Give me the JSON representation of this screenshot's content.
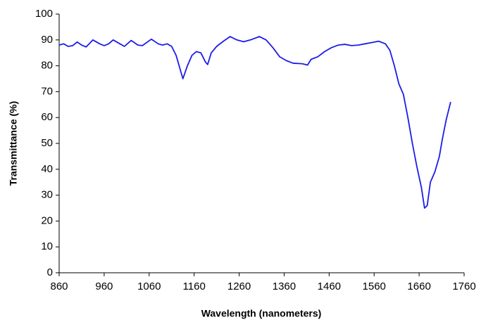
{
  "chart_data": {
    "type": "line",
    "xlabel": "Wavelength (nanometers)",
    "ylabel": "Transmittance (%)",
    "x": [
      860,
      870,
      880,
      890,
      900,
      910,
      920,
      935,
      950,
      960,
      970,
      980,
      995,
      1005,
      1020,
      1035,
      1045,
      1065,
      1080,
      1090,
      1100,
      1110,
      1120,
      1130,
      1135,
      1145,
      1155,
      1165,
      1175,
      1185,
      1190,
      1198,
      1210,
      1225,
      1240,
      1255,
      1270,
      1285,
      1305,
      1320,
      1335,
      1350,
      1365,
      1380,
      1400,
      1412,
      1420,
      1435,
      1450,
      1465,
      1480,
      1495,
      1510,
      1525,
      1540,
      1555,
      1570,
      1585,
      1595,
      1605,
      1615,
      1625,
      1635,
      1645,
      1655,
      1665,
      1672,
      1678,
      1685,
      1695,
      1705,
      1712,
      1720,
      1730
    ],
    "series": [
      {
        "color": "#1c1ce8",
        "values": [
          88,
          88.5,
          87.5,
          87.8,
          89.2,
          88,
          87.3,
          90,
          88.5,
          87.8,
          88.5,
          90,
          88.5,
          87.5,
          89.8,
          88,
          87.8,
          90.3,
          88.5,
          88,
          88.5,
          87.5,
          84,
          78,
          75,
          80,
          84,
          85.5,
          85,
          81.5,
          80.5,
          85,
          87.5,
          89.5,
          91.3,
          90,
          89.3,
          90,
          91.3,
          90,
          87,
          83.5,
          82,
          81,
          80.8,
          80.3,
          82.5,
          83.5,
          85.5,
          87,
          88,
          88.3,
          87.8,
          88,
          88.5,
          89,
          89.5,
          88.5,
          86,
          80,
          73,
          69,
          60,
          50,
          41,
          33,
          25,
          26,
          35,
          39,
          45,
          52,
          59,
          66
        ]
      }
    ],
    "xlim": [
      860,
      1760
    ],
    "xticks": [
      860,
      960,
      1060,
      1160,
      1260,
      1360,
      1460,
      1560,
      1660,
      1760
    ],
    "ylim": [
      0,
      100
    ],
    "yticks": [
      0,
      10,
      20,
      30,
      40,
      50,
      60,
      70,
      80,
      90,
      100
    ]
  }
}
